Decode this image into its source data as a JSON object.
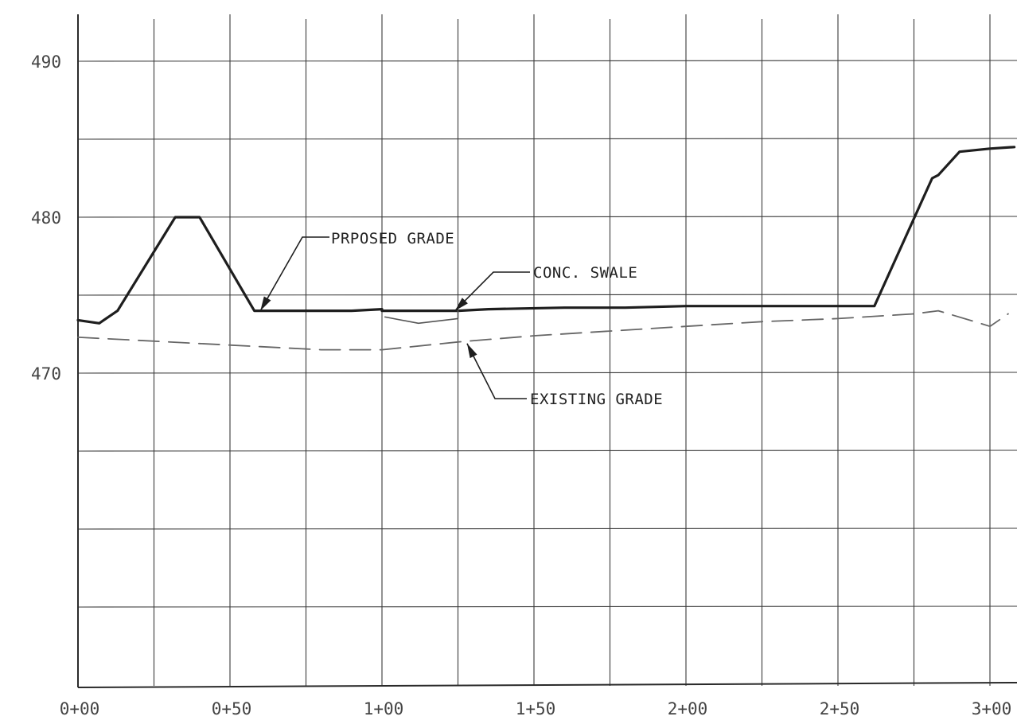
{
  "chart_data": {
    "type": "line",
    "title": "",
    "xlabel": "",
    "ylabel": "",
    "xlim": [
      0,
      300
    ],
    "ylim": [
      450,
      492
    ],
    "grid": true,
    "x_tick_values": [
      0,
      50,
      100,
      150,
      200,
      250,
      300
    ],
    "x_tick_labels": [
      "0+00",
      "0+50",
      "1+00",
      "1+50",
      "2+00",
      "2+50",
      "3+00"
    ],
    "y_tick_values": [
      470,
      480,
      490
    ],
    "y_tick_labels": [
      "470",
      "480",
      "490"
    ],
    "series": [
      {
        "name": "PRPOSED GRADE",
        "style": "solid",
        "color": "#1e1e1e",
        "points": [
          [
            0,
            473.4
          ],
          [
            7,
            473.2
          ],
          [
            13,
            474.0
          ],
          [
            32,
            480.0
          ],
          [
            40,
            480.0
          ],
          [
            58,
            474.0
          ],
          [
            90,
            474.0
          ],
          [
            100,
            474.1
          ],
          [
            100,
            474.0
          ],
          [
            125,
            474.0
          ],
          [
            135,
            474.1
          ],
          [
            160,
            474.2
          ],
          [
            180,
            474.2
          ],
          [
            200,
            474.3
          ],
          [
            230,
            474.3
          ],
          [
            262,
            474.3
          ],
          [
            281,
            482.5
          ],
          [
            283,
            482.7
          ],
          [
            290,
            484.2
          ],
          [
            300,
            484.4
          ],
          [
            308,
            484.5
          ]
        ]
      },
      {
        "name": "CONC. SWALE",
        "style": "thin",
        "color": "#555555",
        "points": [
          [
            101,
            473.6
          ],
          [
            112,
            473.2
          ],
          [
            125,
            473.5
          ],
          [
            125,
            474.0
          ]
        ]
      },
      {
        "name": "EXISTING GRADE",
        "style": "dashed",
        "color": "#666666",
        "points": [
          [
            0,
            472.3
          ],
          [
            20,
            472.1
          ],
          [
            40,
            471.9
          ],
          [
            60,
            471.7
          ],
          [
            80,
            471.5
          ],
          [
            100,
            471.5
          ],
          [
            125,
            472.0
          ],
          [
            150,
            472.4
          ],
          [
            175,
            472.7
          ],
          [
            200,
            473.0
          ],
          [
            225,
            473.3
          ],
          [
            250,
            473.5
          ],
          [
            275,
            473.8
          ],
          [
            283,
            474.0
          ],
          [
            295,
            473.3
          ],
          [
            300,
            473.0
          ],
          [
            306,
            473.8
          ]
        ]
      }
    ],
    "annotations": [
      {
        "text": "PRPOSED GRADE",
        "series": "PRPOSED GRADE",
        "target": [
          60,
          474.0
        ]
      },
      {
        "text": "CONC. SWALE",
        "series": "CONC. SWALE",
        "target": [
          124,
          474.0
        ]
      },
      {
        "text": "EXISTING GRADE",
        "series": "EXISTING GRADE",
        "target": [
          128,
          471.9
        ]
      }
    ]
  }
}
